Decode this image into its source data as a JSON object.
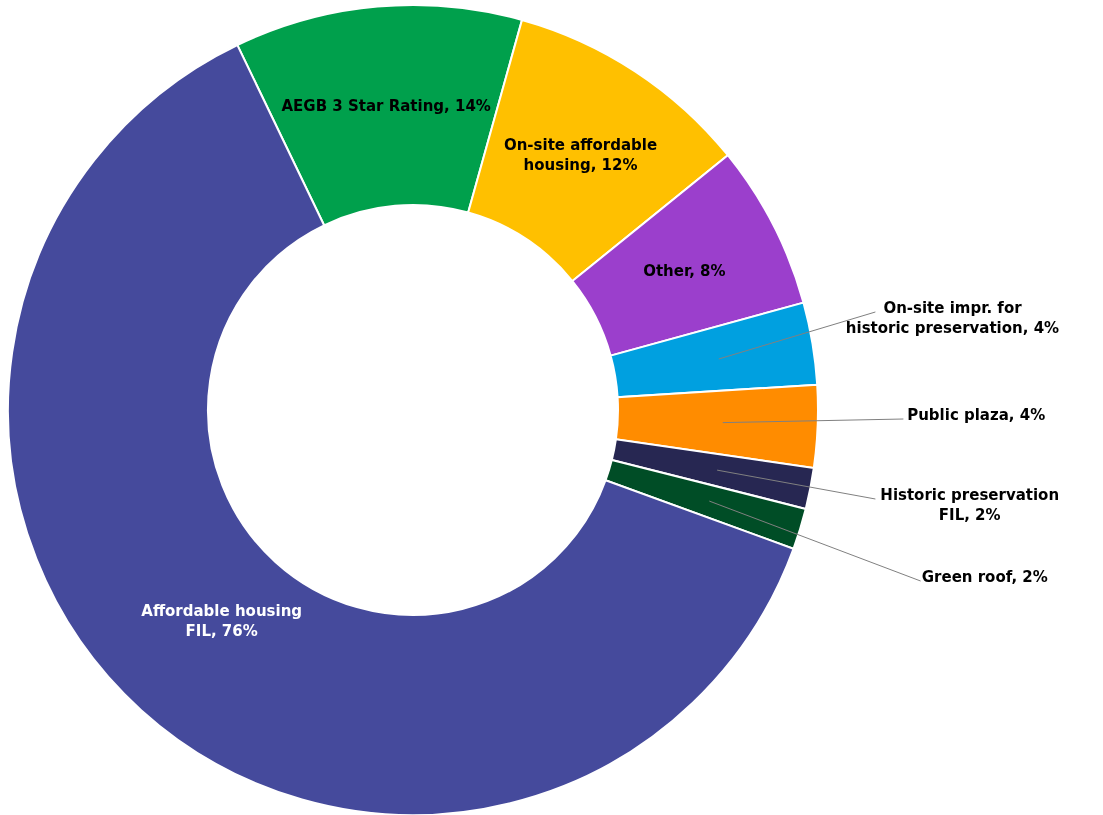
{
  "chart_data": {
    "type": "donut",
    "categories": [
      "AEGB 3 Star Rating",
      "On-site affordable housing",
      "Other",
      "On-site impr. for historic preservation",
      "Public plaza",
      "Historic preservation FIL",
      "Green roof",
      "Affordable housing FIL"
    ],
    "values": [
      14,
      12,
      8,
      4,
      4,
      2,
      2,
      76
    ],
    "value_labels": [
      "14%",
      "12%",
      "8%",
      "4%",
      "4%",
      "2%",
      "2%",
      "76%"
    ],
    "colors": [
      "#00a04c",
      "#ffc000",
      "#9b3fcc",
      "#00a0e0",
      "#ff8c00",
      "#272752",
      "#004d26",
      "#454a9c"
    ]
  }
}
